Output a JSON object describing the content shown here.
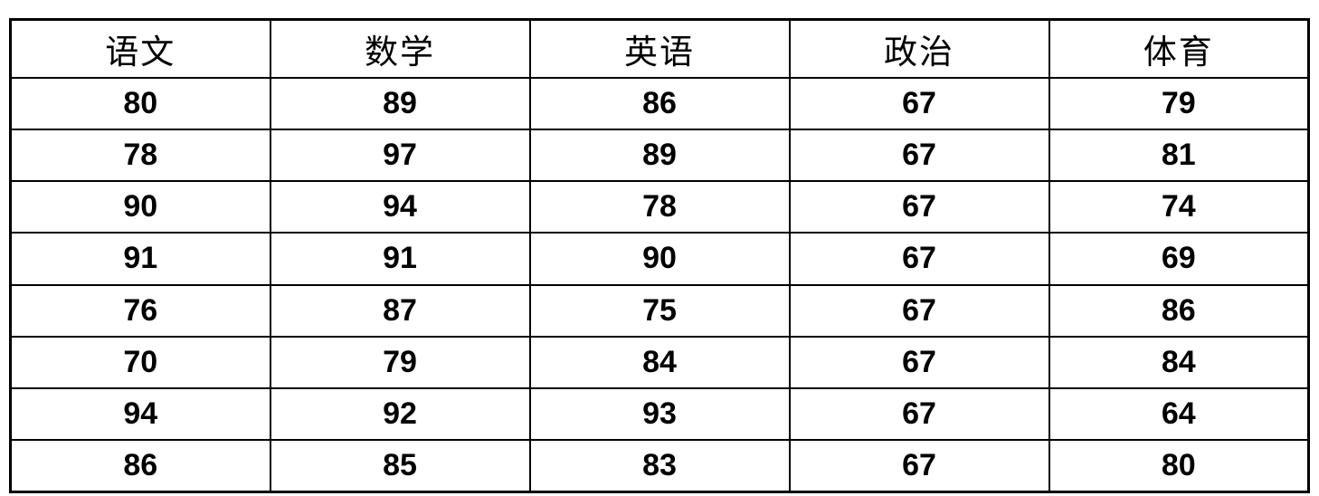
{
  "table": {
    "headers": [
      "语文",
      "数学",
      "英语",
      "政治",
      "体育"
    ],
    "rows": [
      [
        "80",
        "89",
        "86",
        "67",
        "79"
      ],
      [
        "78",
        "97",
        "89",
        "67",
        "81"
      ],
      [
        "90",
        "94",
        "78",
        "67",
        "74"
      ],
      [
        "91",
        "91",
        "90",
        "67",
        "69"
      ],
      [
        "76",
        "87",
        "75",
        "67",
        "86"
      ],
      [
        "70",
        "79",
        "84",
        "67",
        "84"
      ],
      [
        "94",
        "92",
        "93",
        "67",
        "64"
      ],
      [
        "86",
        "85",
        "83",
        "67",
        "80"
      ]
    ]
  },
  "chart_data": {
    "type": "table",
    "columns": [
      "语文",
      "数学",
      "英语",
      "政治",
      "体育"
    ],
    "rows": [
      [
        80,
        89,
        86,
        67,
        79
      ],
      [
        78,
        97,
        89,
        67,
        81
      ],
      [
        90,
        94,
        78,
        67,
        74
      ],
      [
        91,
        91,
        90,
        67,
        69
      ],
      [
        76,
        87,
        75,
        67,
        86
      ],
      [
        70,
        79,
        84,
        67,
        84
      ],
      [
        94,
        92,
        93,
        67,
        64
      ],
      [
        86,
        85,
        83,
        67,
        80
      ]
    ],
    "title": "",
    "layout": {
      "grid": "all-borders",
      "header_row": true
    },
    "colors": {
      "border": "#000000",
      "text": "#000000",
      "background": "#ffffff"
    }
  }
}
